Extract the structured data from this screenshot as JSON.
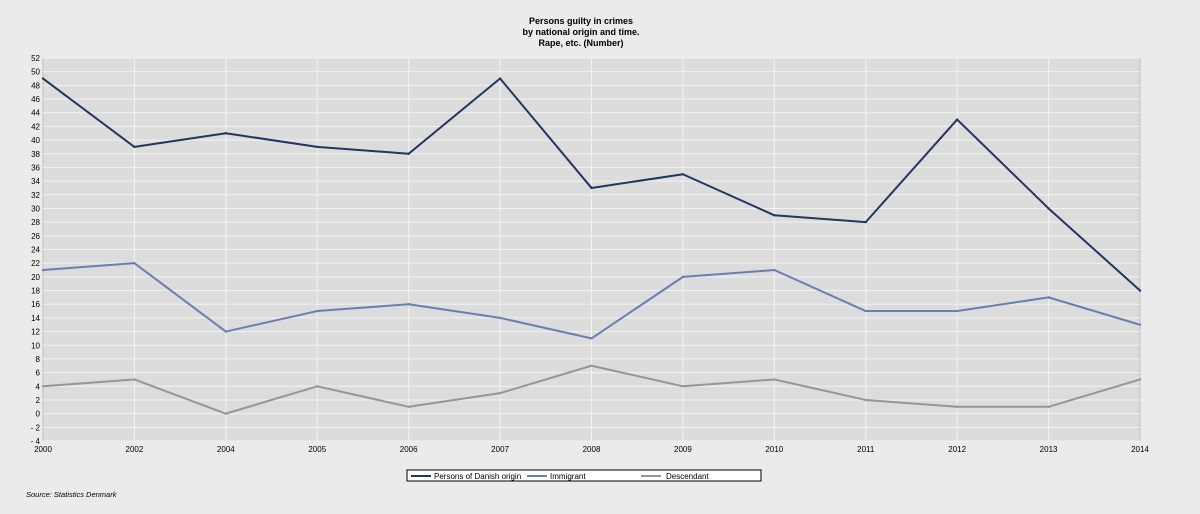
{
  "chart_data": {
    "type": "line",
    "title_lines": [
      "Persons guilty in crimes",
      "by national origin and time.",
      "Rape, etc. (Number)"
    ],
    "categories": [
      "2000",
      "2002",
      "2004",
      "2005",
      "2006",
      "2007",
      "2008",
      "2009",
      "2010",
      "2011",
      "2012",
      "2013",
      "2014"
    ],
    "series": [
      {
        "name": "Persons of Danish origin",
        "color": "#233660",
        "values": [
          49,
          39,
          41,
          39,
          38,
          49,
          33,
          35,
          29,
          28,
          43,
          30,
          18
        ]
      },
      {
        "name": "Immigrant",
        "color": "#6a7fb0",
        "values": [
          21,
          22,
          12,
          15,
          16,
          14,
          11,
          20,
          21,
          15,
          15,
          17,
          13
        ]
      },
      {
        "name": "Descendant",
        "color": "#969696",
        "values": [
          4,
          5,
          0,
          4,
          1,
          3,
          7,
          4,
          5,
          2,
          1,
          1,
          5
        ]
      }
    ],
    "ylim": [
      -4,
      52
    ],
    "ytick_step": 2,
    "yticks": [
      "52",
      "50",
      "48",
      "46",
      "44",
      "42",
      "40",
      "38",
      "36",
      "34",
      "32",
      "30",
      "28",
      "26",
      "24",
      "22",
      "20",
      "18",
      "16",
      "14",
      "12",
      "10",
      "8",
      "6",
      "4",
      "2",
      "0",
      "- 2",
      "- 4"
    ],
    "grid": true,
    "plot_background": "#dcdcdc",
    "grid_color": "#f2f2f2",
    "legend_position": "bottom-center",
    "source": "Source: Statistics Denmark"
  }
}
